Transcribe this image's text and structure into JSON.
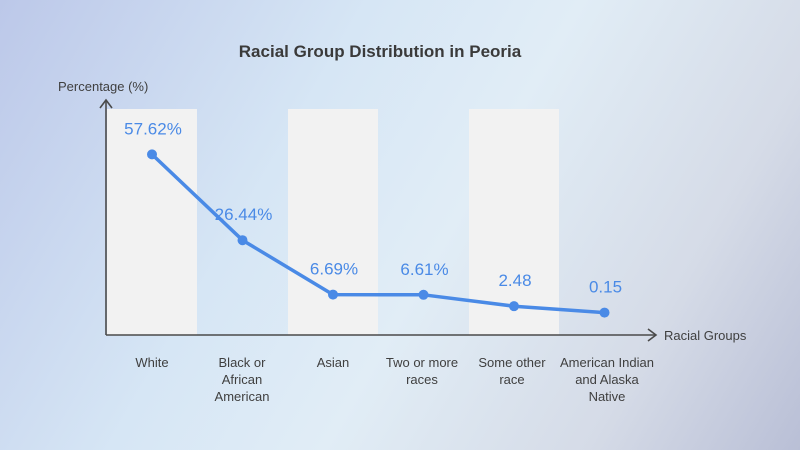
{
  "chart_data": {
    "type": "line",
    "title": "Racial Group Distribution in Peoria",
    "ylabel": "Percentage (%)",
    "xlabel": "Racial Groups",
    "categories": [
      "White",
      "Black or African American",
      "Asian",
      "Two or more races",
      "Some other race",
      "American Indian and Alaska Native"
    ],
    "values": [
      57.62,
      26.44,
      6.69,
      6.61,
      2.48,
      0.15
    ],
    "value_labels": [
      "57.62%",
      "26.44%",
      "6.69%",
      "6.61%",
      "2.48",
      "0.15"
    ],
    "grid": false,
    "legend": "none",
    "line_color": "#4a8ae6",
    "band_color": "#f2f2f2"
  }
}
